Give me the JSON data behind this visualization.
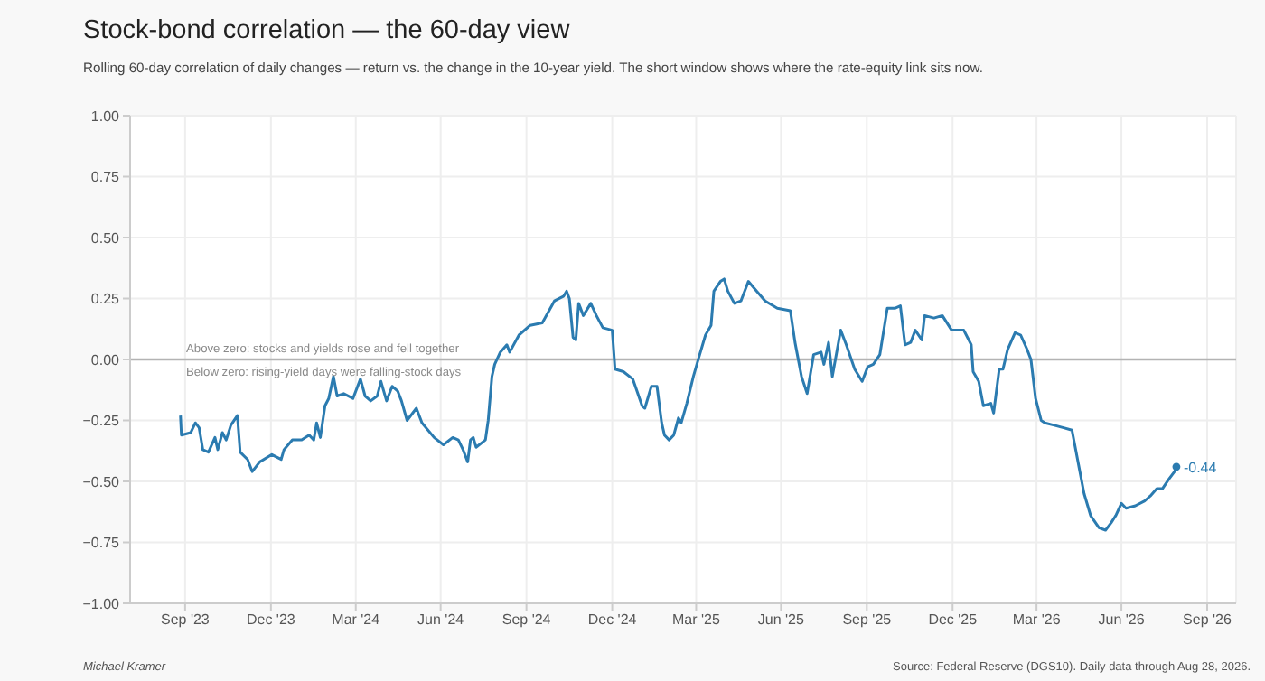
{
  "chart_data": {
    "type": "line",
    "title": "Stock-bond correlation — the 60-day view",
    "subtitle": "Rolling 60-day correlation of daily changes — return vs. the change in the 10-year yield. The short window shows where the rate-equity link sits now.",
    "x": [
      "2023-09-25",
      "2023-09-26",
      "2023-10-06",
      "2023-10-11",
      "2023-10-15",
      "2023-10-19",
      "2023-10-25",
      "2023-11-01",
      "2023-11-04",
      "2023-11-09",
      "2023-11-13",
      "2023-11-18",
      "2023-11-25",
      "2023-11-28",
      "2023-12-06",
      "2023-12-11",
      "2023-12-19",
      "2024-01-01",
      "2024-01-11",
      "2024-01-14",
      "2024-01-23",
      "2024-02-02",
      "2024-02-10",
      "2024-02-15",
      "2024-02-18",
      "2024-02-22",
      "2024-02-27",
      "2024-03-02",
      "2024-03-07",
      "2024-03-11",
      "2024-03-18",
      "2024-03-28",
      "2024-04-05",
      "2024-04-10",
      "2024-04-16",
      "2024-04-23",
      "2024-04-27",
      "2024-05-03",
      "2024-05-09",
      "2024-05-15",
      "2024-05-19",
      "2024-05-25",
      "2024-06-04",
      "2024-06-10",
      "2024-06-23",
      "2024-07-03",
      "2024-07-13",
      "2024-07-19",
      "2024-07-24",
      "2024-07-29",
      "2024-08-01",
      "2024-08-04",
      "2024-08-07",
      "2024-08-17",
      "2024-08-20",
      "2024-08-24",
      "2024-08-27",
      "2024-09-02",
      "2024-09-09",
      "2024-09-12",
      "2024-09-22",
      "2024-10-04",
      "2024-10-17",
      "2024-10-30",
      "2024-11-09",
      "2024-11-12",
      "2024-11-15",
      "2024-11-19",
      "2024-11-22",
      "2024-11-25",
      "2024-11-30",
      "2024-12-08",
      "2024-12-14",
      "2024-12-21",
      "2024-12-31",
      "2025-01-03",
      "2025-01-12",
      "2025-01-22",
      "2025-02-01",
      "2025-02-04",
      "2025-02-11",
      "2025-02-17",
      "2025-02-22",
      "2025-02-25",
      "2025-03-02",
      "2025-03-07",
      "2025-03-12",
      "2025-03-15",
      "2025-03-21",
      "2025-03-28",
      "2025-04-03",
      "2025-04-10",
      "2025-04-16",
      "2025-04-19",
      "2025-04-26",
      "2025-04-30",
      "2025-05-04",
      "2025-05-11",
      "2025-05-18",
      "2025-05-26",
      "2025-06-04",
      "2025-06-13",
      "2025-06-26",
      "2025-07-10",
      "2025-07-15",
      "2025-07-22",
      "2025-07-28",
      "2025-08-04",
      "2025-08-12",
      "2025-08-15",
      "2025-08-20",
      "2025-08-24",
      "2025-09-02",
      "2025-09-08",
      "2025-09-17",
      "2025-09-25",
      "2025-10-01",
      "2025-10-07",
      "2025-10-14",
      "2025-10-22",
      "2025-10-30",
      "2025-11-05",
      "2025-11-10",
      "2025-11-16",
      "2025-11-21",
      "2025-11-28",
      "2025-12-01",
      "2025-12-11",
      "2025-12-20",
      "2025-12-30",
      "2026-01-12",
      "2026-01-20",
      "2026-01-22",
      "2026-01-28",
      "2026-02-02",
      "2026-02-10",
      "2026-02-13",
      "2026-02-19",
      "2026-02-23",
      "2026-02-28",
      "2026-03-08",
      "2026-03-14",
      "2026-03-21",
      "2026-03-25",
      "2026-03-30",
      "2026-04-05",
      "2026-04-09",
      "2026-04-19",
      "2026-04-29",
      "2026-05-08",
      "2026-05-15",
      "2026-05-21",
      "2026-05-28",
      "2026-06-06",
      "2026-06-13",
      "2026-06-19",
      "2026-06-24",
      "2026-06-30",
      "2026-07-05",
      "2026-07-15",
      "2026-07-25",
      "2026-07-31",
      "2026-08-07",
      "2026-08-13",
      "2026-08-20",
      "2026-08-26",
      "2026-08-28"
    ],
    "series": [
      {
        "color": "#2b7bb0",
        "values": [
          -0.23,
          -0.31,
          -0.3,
          -0.26,
          -0.28,
          -0.37,
          -0.38,
          -0.32,
          -0.37,
          -0.3,
          -0.33,
          -0.27,
          -0.23,
          -0.38,
          -0.41,
          -0.46,
          -0.42,
          -0.39,
          -0.41,
          -0.37,
          -0.33,
          -0.33,
          -0.31,
          -0.33,
          -0.26,
          -0.32,
          -0.19,
          -0.16,
          -0.07,
          -0.15,
          -0.14,
          -0.16,
          -0.08,
          -0.15,
          -0.17,
          -0.15,
          -0.09,
          -0.17,
          -0.11,
          -0.13,
          -0.17,
          -0.25,
          -0.2,
          -0.26,
          -0.32,
          -0.35,
          -0.32,
          -0.33,
          -0.37,
          -0.42,
          -0.33,
          -0.32,
          -0.36,
          -0.33,
          -0.25,
          -0.07,
          -0.02,
          0.03,
          0.06,
          0.03,
          0.1,
          0.14,
          0.15,
          0.24,
          0.26,
          0.28,
          0.25,
          0.09,
          0.08,
          0.23,
          0.18,
          0.23,
          0.18,
          0.13,
          0.12,
          -0.04,
          -0.05,
          -0.08,
          -0.19,
          -0.2,
          -0.11,
          -0.11,
          -0.26,
          -0.31,
          -0.33,
          -0.31,
          -0.24,
          -0.26,
          -0.18,
          -0.07,
          0.01,
          0.1,
          0.14,
          0.28,
          0.32,
          0.33,
          0.28,
          0.23,
          0.24,
          0.32,
          0.28,
          0.24,
          0.21,
          0.2,
          0.07,
          -0.07,
          -0.14,
          0.02,
          0.03,
          -0.02,
          0.07,
          -0.07,
          0.12,
          0.06,
          -0.04,
          -0.09,
          -0.03,
          -0.02,
          0.02,
          0.21,
          0.21,
          0.22,
          0.06,
          0.07,
          0.12,
          0.08,
          0.18,
          0.17,
          0.18,
          0.12,
          0.12,
          0.06,
          -0.05,
          -0.09,
          -0.19,
          -0.18,
          -0.22,
          -0.04,
          -0.04,
          0.04,
          0.11,
          0.1,
          0.04,
          0.0,
          -0.16,
          -0.25,
          -0.26,
          -0.27,
          -0.28,
          -0.29,
          -0.43,
          -0.55,
          -0.64,
          -0.69,
          -0.7,
          -0.67,
          -0.64,
          -0.59,
          -0.61,
          -0.6,
          -0.58,
          -0.56,
          -0.53,
          -0.53,
          -0.49,
          -0.46,
          -0.44
        ]
      }
    ],
    "xlim": [
      "2023-08-02",
      "2026-10-31"
    ],
    "xticks": [
      {
        "value": "2023-09-30",
        "label": "Sep '23"
      },
      {
        "value": "2023-12-31",
        "label": "Dec '23"
      },
      {
        "value": "2024-03-31",
        "label": "Mar '24"
      },
      {
        "value": "2024-06-30",
        "label": "Jun '24"
      },
      {
        "value": "2024-09-30",
        "label": "Sep '24"
      },
      {
        "value": "2024-12-31",
        "label": "Dec '24"
      },
      {
        "value": "2025-03-31",
        "label": "Mar '25"
      },
      {
        "value": "2025-06-30",
        "label": "Jun '25"
      },
      {
        "value": "2025-09-30",
        "label": "Sep '25"
      },
      {
        "value": "2025-12-31",
        "label": "Dec '25"
      },
      {
        "value": "2026-03-31",
        "label": "Mar '26"
      },
      {
        "value": "2026-06-30",
        "label": "Jun '26"
      },
      {
        "value": "2026-09-30",
        "label": "Sep '26"
      }
    ],
    "ylim": [
      -1,
      1
    ],
    "yticks": [
      {
        "value": -1,
        "label": "−1.00"
      },
      {
        "value": -0.75,
        "label": "−0.75"
      },
      {
        "value": -0.5,
        "label": "−0.50"
      },
      {
        "value": -0.25,
        "label": "−0.25"
      },
      {
        "value": 0,
        "label": "0.00"
      },
      {
        "value": 0.25,
        "label": "0.25"
      },
      {
        "value": 0.5,
        "label": "0.50"
      },
      {
        "value": 0.75,
        "label": "0.75"
      },
      {
        "value": 1,
        "label": "1.00"
      }
    ],
    "grid": true,
    "legend": false,
    "marker": "none",
    "line_style": "solid",
    "ref_lines": [
      {
        "axis": "y",
        "value": 0,
        "label": "Above zero: stocks and yields rose and fell together",
        "color": "#b3b3b3"
      }
    ],
    "annotations": [
      {
        "text": "-0.44",
        "x": "2026-08-28",
        "y": -0.44
      },
      {
        "text": "Below zero: rising-yield days were falling-stock days",
        "y": 0
      },
      "Michael Kramer",
      "Source: Federal Reserve (DGS10). Daily data through Aug 28, 2026."
    ]
  }
}
